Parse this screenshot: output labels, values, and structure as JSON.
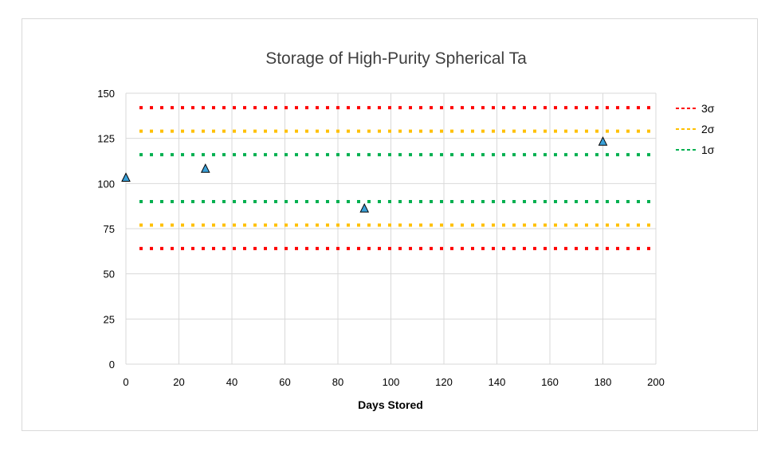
{
  "chart_data": {
    "type": "scatter",
    "title": "Storage of High-Purity Spherical Ta",
    "xlabel": "Days Stored",
    "ylabel": "",
    "xlim": [
      0,
      200
    ],
    "ylim": [
      0,
      150
    ],
    "xticks": [
      0,
      20,
      40,
      60,
      80,
      100,
      120,
      140,
      160,
      180,
      200
    ],
    "yticks": [
      0,
      25,
      50,
      75,
      100,
      125,
      150
    ],
    "grid": true,
    "legend_position": "right",
    "series": [
      {
        "type": "scatter",
        "marker": "triangle",
        "color": "#3aa0d8",
        "x": [
          0,
          30,
          90,
          180
        ],
        "y": [
          103,
          108,
          86,
          123
        ]
      }
    ],
    "reference_lines": [
      {
        "name": "3σ",
        "color": "#ff0000",
        "values": [
          64,
          142
        ]
      },
      {
        "name": "2σ",
        "color": "#ffc000",
        "values": [
          77,
          129
        ]
      },
      {
        "name": "1σ",
        "color": "#00b050",
        "values": [
          90,
          116
        ]
      }
    ]
  }
}
